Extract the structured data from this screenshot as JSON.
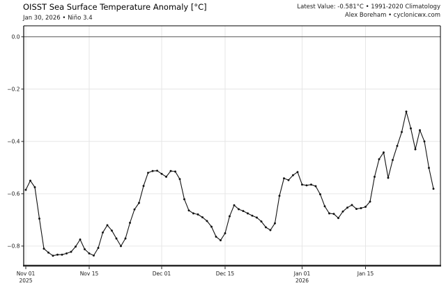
{
  "header": {
    "title": "OISST Sea Surface Temperature Anomaly [°C]",
    "subtitle": "Jan 30, 2026 • Niño 3.4",
    "right_line1": "Latest Value: -0.581°C • 1991-2020 Climatology",
    "right_line2": "Alex Boreham • cyclonicwx.com"
  },
  "chart_data": {
    "type": "line",
    "title": "OISST Sea Surface Temperature Anomaly [°C]",
    "subtitle": "Jan 30, 2026 • Niño 3.4",
    "series_name": "Niño 3.4 daily SST anomaly",
    "start_date": "2025-11-01",
    "end_date": "2026-01-30",
    "cadence": "daily",
    "latest_value": -0.581,
    "climatology": "1991-2020",
    "values": [
      -0.585,
      -0.55,
      -0.575,
      -0.695,
      -0.81,
      -0.825,
      -0.837,
      -0.833,
      -0.833,
      -0.828,
      -0.822,
      -0.802,
      -0.775,
      -0.812,
      -0.828,
      -0.836,
      -0.807,
      -0.748,
      -0.72,
      -0.741,
      -0.771,
      -0.8,
      -0.771,
      -0.711,
      -0.66,
      -0.635,
      -0.57,
      -0.52,
      -0.513,
      -0.512,
      -0.524,
      -0.535,
      -0.513,
      -0.515,
      -0.544,
      -0.621,
      -0.664,
      -0.675,
      -0.679,
      -0.69,
      -0.704,
      -0.726,
      -0.764,
      -0.778,
      -0.751,
      -0.686,
      -0.644,
      -0.659,
      -0.666,
      -0.675,
      -0.684,
      -0.691,
      -0.706,
      -0.728,
      -0.739,
      -0.713,
      -0.608,
      -0.541,
      -0.548,
      -0.529,
      -0.517,
      -0.565,
      -0.568,
      -0.565,
      -0.571,
      -0.602,
      -0.648,
      -0.675,
      -0.677,
      -0.693,
      -0.668,
      -0.653,
      -0.643,
      -0.658,
      -0.655,
      -0.65,
      -0.63,
      -0.535,
      -0.468,
      -0.442,
      -0.539,
      -0.471,
      -0.417,
      -0.364,
      -0.286,
      -0.35,
      -0.43,
      -0.357,
      -0.4,
      -0.501,
      -0.581
    ],
    "y_ticks": {
      "values": [
        0.0,
        -0.2,
        -0.4,
        -0.6,
        -0.8
      ],
      "labels": [
        "0.0",
        "−0.2",
        "−0.4",
        "−0.6",
        "−0.8"
      ]
    },
    "x_ticks": {
      "day_index": [
        0,
        14,
        30,
        44,
        61,
        75
      ],
      "labels": [
        [
          "Nov 01",
          "2025"
        ],
        [
          "Nov 15"
        ],
        [
          "Dec 01"
        ],
        [
          "Dec 15"
        ],
        [
          "Jan 01",
          "2026"
        ],
        [
          "Jan 15"
        ]
      ]
    },
    "xlim_days": [
      -0.46,
      91.54
    ],
    "ylim": [
      -0.875,
      0.042
    ],
    "grid": true,
    "legend": "none",
    "marker": "circle",
    "colors": {
      "line": "#111111",
      "marker": "#111111",
      "grid": "#e6e6e6",
      "zero_line": "#555555",
      "spine": "#000000",
      "bottom_spine": "#262626",
      "tick": "#222222",
      "tick_label": "#1a1a1a"
    }
  }
}
